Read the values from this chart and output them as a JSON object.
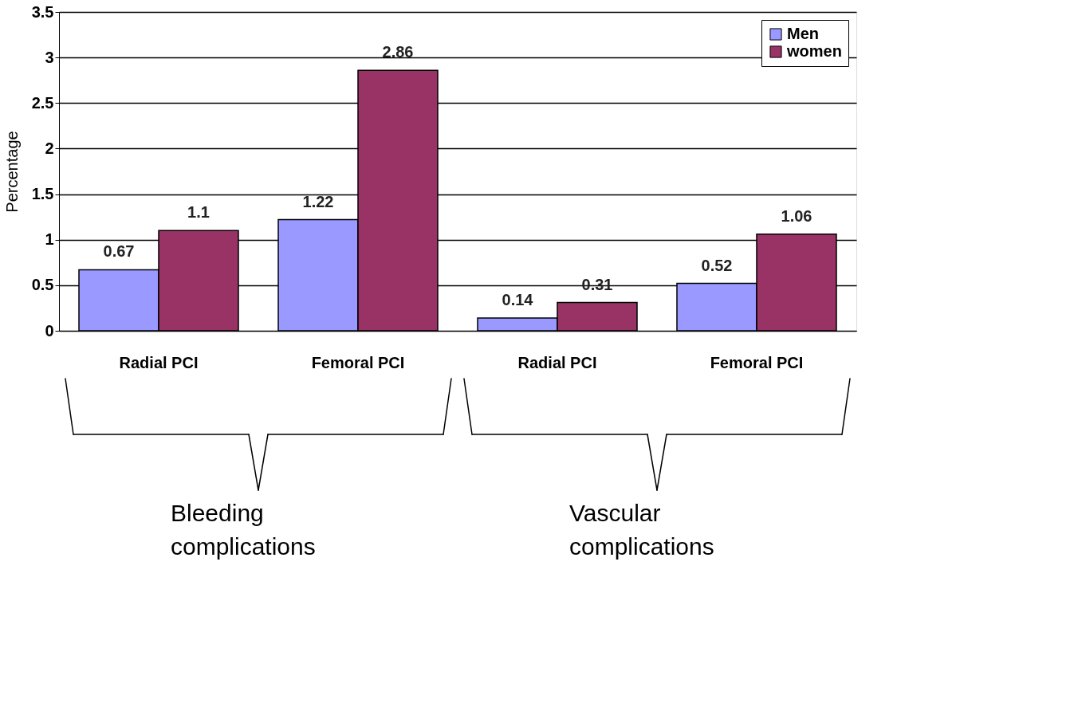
{
  "chart_data": {
    "type": "bar",
    "ylabel": "Percentage",
    "categories": [
      "Radial PCI",
      "Femoral PCI",
      "Radial PCI",
      "Femoral PCI"
    ],
    "series": [
      {
        "name": "Men",
        "color": "#9999ff",
        "values": [
          0.67,
          1.22,
          0.14,
          0.52
        ]
      },
      {
        "name": "women",
        "color": "#993366",
        "values": [
          1.1,
          2.86,
          0.31,
          1.06
        ]
      }
    ],
    "ylim": [
      0,
      3.5
    ],
    "yticks": [
      0,
      0.5,
      1,
      1.5,
      2,
      2.5,
      3,
      3.5
    ],
    "grid": "y",
    "legend": "top right",
    "data_labels": true,
    "annotations": [
      "Bleeding complications",
      "Vascular complications"
    ]
  }
}
